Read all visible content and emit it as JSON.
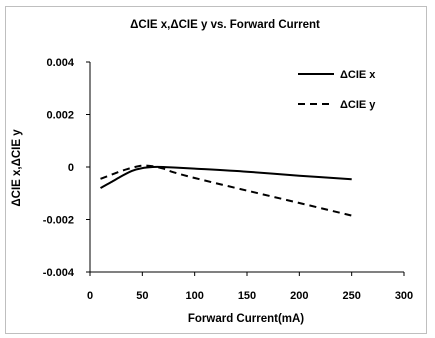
{
  "chart_data": {
    "type": "line",
    "title": "ΔCIE x,ΔCIE y  vs. Forward Current",
    "xlabel": "Forward Current(mA)",
    "ylabel": "ΔCIE x,ΔCIE y",
    "xlim": [
      0,
      300
    ],
    "ylim": [
      -0.004,
      0.004
    ],
    "x_ticks": [
      0,
      50,
      100,
      150,
      200,
      250,
      300
    ],
    "y_ticks": [
      0.004,
      0.002,
      0,
      -0.002,
      -0.004
    ],
    "x_tick_labels": [
      "0",
      "50",
      "100",
      "150",
      "200",
      "250",
      "300"
    ],
    "y_tick_labels": [
      "0.004",
      "0.002",
      "0",
      "-0.002",
      "-0.004"
    ],
    "grid": false,
    "legend_position": "top-right",
    "series": [
      {
        "name": "ΔCIE x",
        "style": "solid",
        "x": [
          10,
          20,
          30,
          40,
          50,
          60,
          70,
          80,
          100,
          150,
          200,
          250
        ],
        "y": [
          -0.0008,
          -0.00058,
          -0.00035,
          -0.00015,
          -4e-05,
          0,
          0,
          -2e-05,
          -6e-05,
          -0.00018,
          -0.00033,
          -0.00047
        ]
      },
      {
        "name": "ΔCIE y",
        "style": "dashed",
        "x": [
          10,
          20,
          30,
          40,
          50,
          60,
          70,
          80,
          100,
          150,
          200,
          250
        ],
        "y": [
          -0.00045,
          -0.0003,
          -0.00015,
          -3e-05,
          5e-05,
          3e-05,
          -6e-05,
          -0.0002,
          -0.00042,
          -0.0009,
          -0.00137,
          -0.00185
        ]
      }
    ],
    "colors": {
      "line": "#000000",
      "axis": "#000000",
      "frame": "#bfbfbf"
    }
  }
}
